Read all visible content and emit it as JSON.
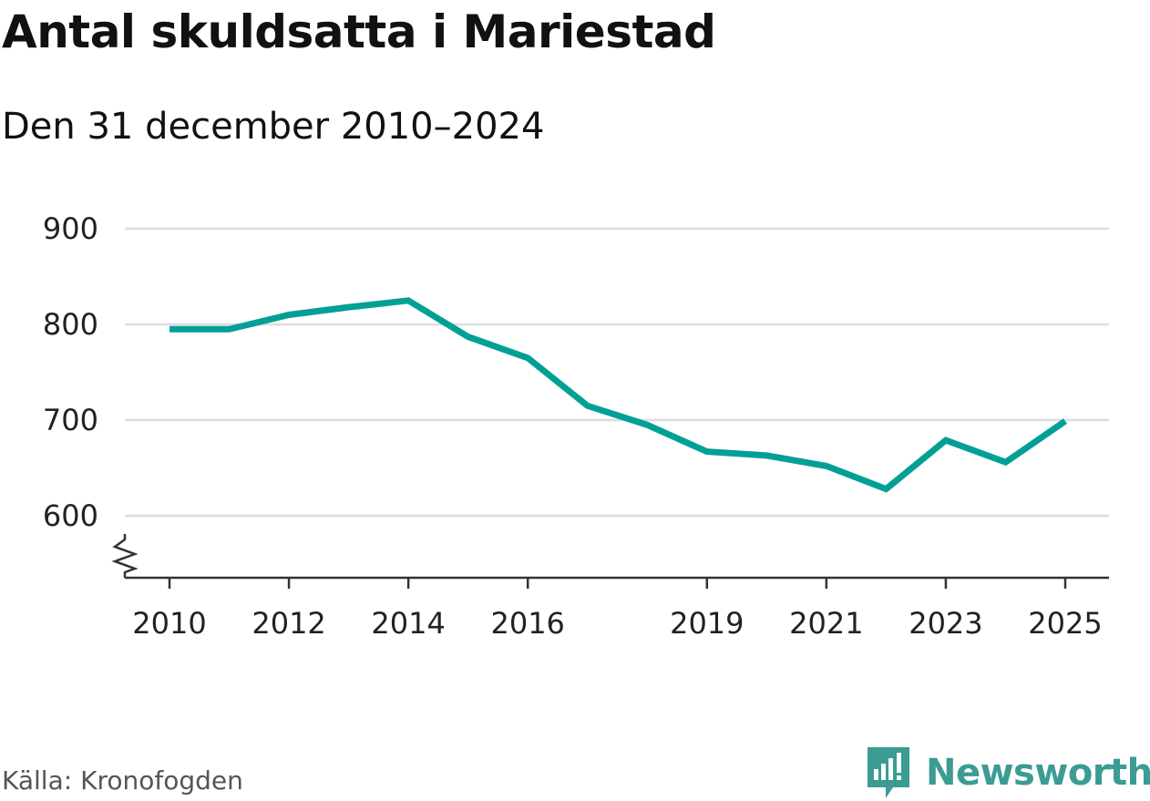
{
  "header": {
    "title": "Antal skuldsatta i Mariestad",
    "subtitle": "Den 31 december 2010–2024"
  },
  "footer": {
    "source": "Källa: Kronofogden",
    "brand": "Newsworthy"
  },
  "colors": {
    "line": "#00a096",
    "grid": "#dddddd",
    "axis": "#333333",
    "brand": "#3a9c92"
  },
  "chart_data": {
    "type": "line",
    "title": "Antal skuldsatta i Mariestad",
    "subtitle": "Den 31 december 2010–2024",
    "xlabel": "",
    "ylabel": "",
    "x": [
      2010,
      2011,
      2012,
      2013,
      2014,
      2015,
      2016,
      2017,
      2018,
      2019,
      2020,
      2021,
      2022,
      2023,
      2024,
      2025
    ],
    "series": [
      {
        "name": "Antal skuldsatta",
        "values": [
          795,
          795,
          810,
          818,
          825,
          787,
          765,
          715,
          695,
          667,
          663,
          652,
          628,
          679,
          656,
          699
        ]
      }
    ],
    "xticks": [
      2010,
      2012,
      2014,
      2016,
      2019,
      2021,
      2023,
      2025
    ],
    "yticks": [
      600,
      700,
      800,
      900
    ],
    "xlim": [
      2009.7,
      2025.75
    ],
    "ylim": [
      535,
      900
    ],
    "axis_break": true,
    "grid": true,
    "legend": "none"
  }
}
